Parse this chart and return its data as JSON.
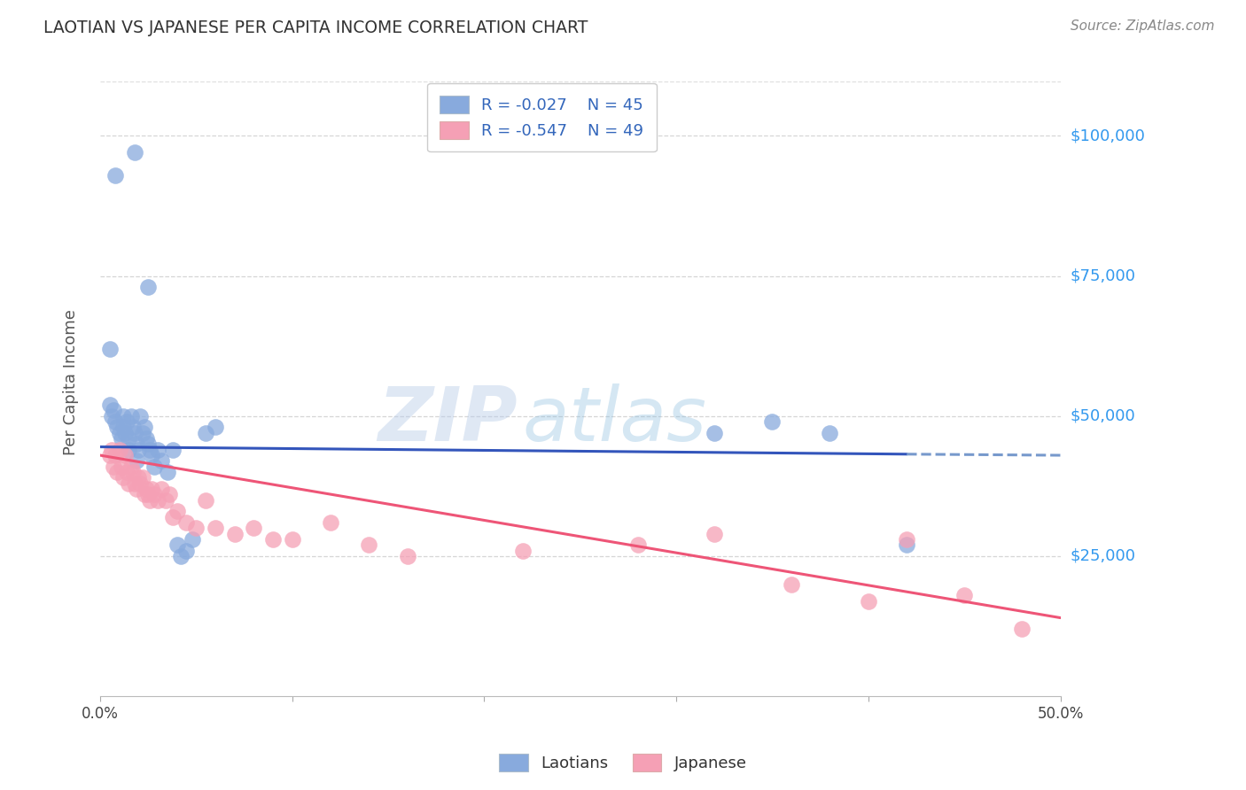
{
  "title": "LAOTIAN VS JAPANESE PER CAPITA INCOME CORRELATION CHART",
  "source": "Source: ZipAtlas.com",
  "ylabel": "Per Capita Income",
  "ytick_labels": [
    "$25,000",
    "$50,000",
    "$75,000",
    "$100,000"
  ],
  "ytick_values": [
    25000,
    50000,
    75000,
    100000
  ],
  "ylim": [
    0,
    112000
  ],
  "xlim": [
    0.0,
    0.5
  ],
  "watermark_zip": "ZIP",
  "watermark_atlas": "atlas",
  "legend_blue_r": "-0.027",
  "legend_blue_n": "45",
  "legend_pink_r": "-0.547",
  "legend_pink_n": "49",
  "blue_scatter_x": [
    0.008,
    0.018,
    0.025,
    0.005,
    0.005,
    0.006,
    0.007,
    0.008,
    0.009,
    0.01,
    0.011,
    0.012,
    0.012,
    0.013,
    0.014,
    0.015,
    0.015,
    0.016,
    0.017,
    0.018,
    0.019,
    0.019,
    0.02,
    0.021,
    0.022,
    0.023,
    0.024,
    0.025,
    0.026,
    0.027,
    0.028,
    0.03,
    0.032,
    0.035,
    0.038,
    0.04,
    0.042,
    0.045,
    0.048,
    0.055,
    0.06,
    0.32,
    0.35,
    0.38,
    0.42
  ],
  "blue_scatter_y": [
    93000,
    97000,
    73000,
    62000,
    52000,
    50000,
    51000,
    49000,
    48000,
    47000,
    46000,
    50000,
    48000,
    47000,
    49000,
    46000,
    44000,
    50000,
    48000,
    47000,
    45000,
    42000,
    44000,
    50000,
    47000,
    48000,
    46000,
    45000,
    44000,
    43000,
    41000,
    44000,
    42000,
    40000,
    44000,
    27000,
    25000,
    26000,
    28000,
    47000,
    48000,
    47000,
    49000,
    47000,
    27000
  ],
  "pink_scatter_x": [
    0.005,
    0.006,
    0.007,
    0.008,
    0.009,
    0.01,
    0.011,
    0.012,
    0.013,
    0.014,
    0.015,
    0.016,
    0.017,
    0.018,
    0.019,
    0.02,
    0.021,
    0.022,
    0.023,
    0.024,
    0.025,
    0.026,
    0.027,
    0.028,
    0.03,
    0.032,
    0.034,
    0.036,
    0.038,
    0.04,
    0.045,
    0.05,
    0.055,
    0.06,
    0.07,
    0.08,
    0.09,
    0.1,
    0.12,
    0.14,
    0.16,
    0.22,
    0.28,
    0.32,
    0.36,
    0.4,
    0.42,
    0.45,
    0.48
  ],
  "pink_scatter_y": [
    43000,
    44000,
    41000,
    43000,
    40000,
    44000,
    41000,
    39000,
    43000,
    40000,
    38000,
    41000,
    40000,
    38000,
    37000,
    39000,
    38000,
    39000,
    36000,
    37000,
    36000,
    35000,
    37000,
    36000,
    35000,
    37000,
    35000,
    36000,
    32000,
    33000,
    31000,
    30000,
    35000,
    30000,
    29000,
    30000,
    28000,
    28000,
    31000,
    27000,
    25000,
    26000,
    27000,
    29000,
    20000,
    17000,
    28000,
    18000,
    12000
  ],
  "blue_line_color": "#3355bb",
  "blue_line_dashed_color": "#7799cc",
  "pink_line_color": "#ee5577",
  "blue_scatter_color": "#88aadd",
  "pink_scatter_color": "#f5a0b5",
  "grid_color": "#cccccc",
  "background_color": "#ffffff",
  "title_color": "#333333",
  "axis_label_color": "#555555",
  "ytick_color": "#3399ee",
  "source_color": "#888888"
}
